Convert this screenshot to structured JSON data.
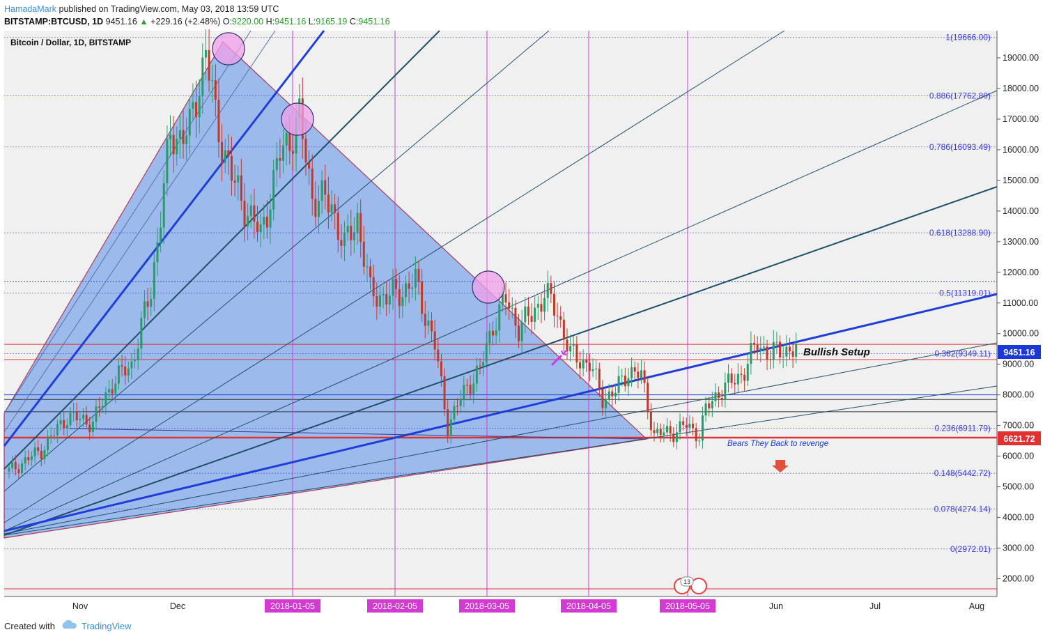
{
  "header": {
    "author": "HamadaMark",
    "published": "published on TradingView.com, May 03, 2018 13:59 UTC",
    "symbol": "BITSTAMP:BTCUSD, 1D",
    "last": "9451.16",
    "change": "+229.16 (+2.48%)",
    "o_label": "O:",
    "o": "9220.00",
    "h_label": "H:",
    "h": "9451.16",
    "l_label": "L:",
    "l": "9165.19",
    "c_label": "C:",
    "c": "9451.16"
  },
  "footer": {
    "created_with": "Created with",
    "brand": "TradingView"
  },
  "colors": {
    "bg": "#f0f0f0",
    "triangle": "#93b4ec",
    "fan_blue": "#1f3ed8",
    "fan_dark": "#1f5068",
    "fib": "#3b3bd6",
    "vline": "#d23ad2",
    "red": "#e03030",
    "up": "#2a9a6a",
    "down": "#c0392b",
    "last_price_box": "#1a39d6"
  },
  "chart_data": {
    "type": "candlestick",
    "title": "Bitcoin / Dollar, 1D, BITSTAMP",
    "y_ticks": [
      "19000.00",
      "18000.00",
      "17000.00",
      "16000.00",
      "15000.00",
      "14000.00",
      "13000.00",
      "12000.00",
      "11000.00",
      "10000.00",
      "9000.00",
      "8000.00",
      "7000.00",
      "6000.00",
      "5000.00",
      "4000.00",
      "3000.00",
      "2000.00"
    ],
    "ylim": [
      1400,
      20400
    ],
    "x_month_labels": [
      "Nov",
      "Dec",
      "Jun",
      "Jul",
      "Aug"
    ],
    "x_date_labels": [
      "2018-01-05",
      "2018-02-05",
      "2018-03-05",
      "2018-04-05",
      "2018-05-05"
    ],
    "fib_levels": [
      {
        "label": "1(19666.00)",
        "value": 19666
      },
      {
        "label": "0.886(17762.89)",
        "value": 17762.89
      },
      {
        "label": "0.786(16093.49)",
        "value": 16093.49
      },
      {
        "label": "0.618(13288.90)",
        "value": 13288.9
      },
      {
        "label": "0.5(11319.01)",
        "value": 11319.01
      },
      {
        "label": "0.382(9349.11)",
        "value": 9349.11
      },
      {
        "label": "0.236(6911.79)",
        "value": 6911.79
      },
      {
        "label": "0.148(5442.72)",
        "value": 5442.72
      },
      {
        "label": "0.078(4274.14)",
        "value": 4274.14
      },
      {
        "label": "0(2972.01)",
        "value": 2972.01
      }
    ],
    "last_price": "9451.16",
    "support_price": "6621.72",
    "annotations": {
      "bullish": "Bullish Setup",
      "bears": "Bears They Back to revenge",
      "event_count": "13"
    }
  }
}
